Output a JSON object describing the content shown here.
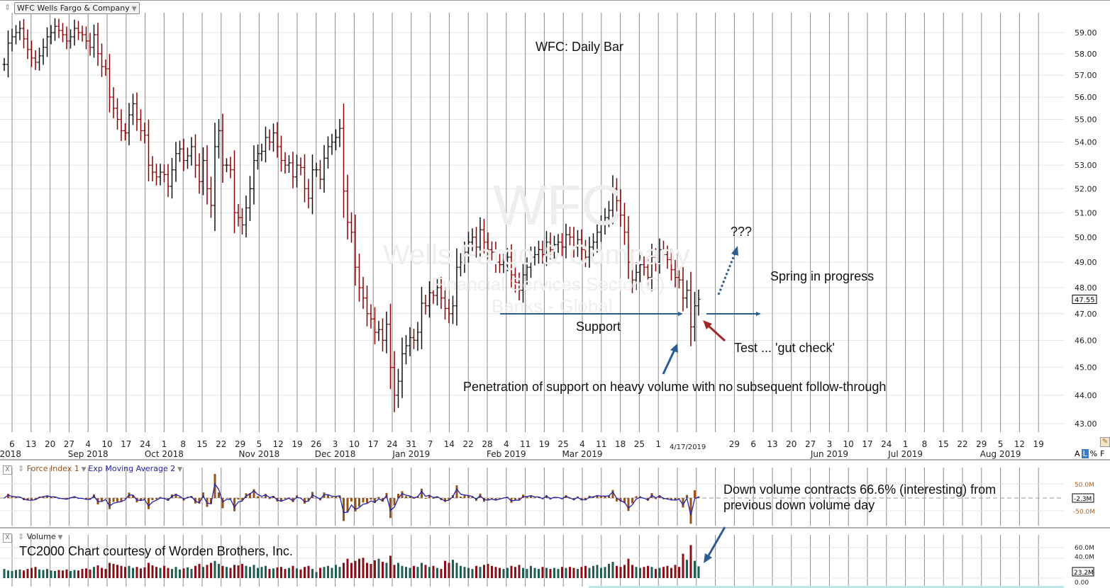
{
  "header": {
    "symbol_selector": "WFC Wells Fargo & Company"
  },
  "watermark": {
    "ticker": "WFC",
    "name": "Wells Fargo & Company",
    "sector": "Financial Services Sector(C)",
    "industry": "Banks - Global"
  },
  "annotations": {
    "title": "WFC:  Daily Bar",
    "question": "???",
    "spring": "Spring in progress",
    "support": "Support",
    "test": "Test ... 'gut check'",
    "penetration": "Penetration of support on heavy volume with no subsequent follow-through",
    "volume_note_1": "Down volume contracts 66.6% (interesting) from",
    "volume_note_2": "previous down volume day",
    "credit": "TC2000 Chart courtesy of Worden Brothers, Inc."
  },
  "scale_toggles": {
    "a": "A",
    "l": "L",
    "pct": "%",
    "f": "F",
    "active": "L"
  },
  "colors": {
    "up": "#111111",
    "down": "#8b0000",
    "vol_up": "#1f5f50",
    "vol_down": "#8b0f14",
    "force": "#9a5215",
    "ema": "#2222aa",
    "support": "#2d5d8e",
    "arrow_red": "#a3262a"
  },
  "chart_data": [
    {
      "type": "bar",
      "title": "WFC:  Daily Bar",
      "scale": "log",
      "ylim": [
        43,
        59.5
      ],
      "y_ticks": [
        "59.00",
        "58.00",
        "57.00",
        "56.00",
        "55.00",
        "54.00",
        "53.00",
        "52.00",
        "51.00",
        "50.00",
        "49.00",
        "48.00",
        "47.00",
        "46.00",
        "45.00",
        "44.00",
        "43.00"
      ],
      "last_price": "47.55",
      "current_date": "4/17/2019",
      "support_level": 47.0,
      "x_tick_labels": [
        "6",
        "13",
        "20",
        "27",
        "4",
        "10",
        "17",
        "24",
        "1",
        "8",
        "15",
        "22",
        "29",
        "5",
        "12",
        "19",
        "26",
        "3",
        "10",
        "17",
        "24",
        "31",
        "7",
        "14",
        "22",
        "28",
        "4",
        "11",
        "19",
        "25",
        "4",
        "11",
        "18",
        "25",
        "1",
        "",
        "",
        "",
        "29",
        "6",
        "13",
        "20",
        "27",
        "3",
        "10",
        "17",
        "24",
        "1",
        "8",
        "15",
        "22",
        "29",
        "5",
        "12",
        "19"
      ],
      "month_labels": [
        {
          "label": "2018",
          "tick": 0
        },
        {
          "label": "Sep 2018",
          "tick": 4
        },
        {
          "label": "Oct 2018",
          "tick": 8
        },
        {
          "label": "Nov 2018",
          "tick": 13
        },
        {
          "label": "Dec 2018",
          "tick": 17
        },
        {
          "label": "Jan 2019",
          "tick": 21
        },
        {
          "label": "Feb 2019",
          "tick": 26
        },
        {
          "label": "Mar 2019",
          "tick": 30
        },
        {
          "label": "Jun 2019",
          "tick": 43
        },
        {
          "label": "Jul 2019",
          "tick": 47
        },
        {
          "label": "Aug 2019",
          "tick": 52
        }
      ],
      "closes": [
        57.5,
        58.5,
        58.8,
        59.0,
        59.2,
        58.7,
        58.2,
        57.8,
        57.6,
        57.9,
        58.3,
        58.8,
        59.0,
        59.3,
        59.1,
        58.9,
        58.6,
        58.8,
        59.2,
        59.0,
        58.9,
        58.6,
        58.3,
        58.9,
        58.0,
        57.4,
        57.3,
        56.0,
        55.5,
        55.0,
        54.5,
        54.4,
        55.2,
        55.7,
        55.0,
        54.5,
        54.3,
        53.0,
        52.7,
        52.5,
        52.7,
        52.6,
        52.1,
        52.8,
        53.5,
        53.7,
        53.2,
        53.4,
        53.8,
        53.0,
        52.3,
        53.2,
        52.0,
        51.3,
        53.8,
        54.5,
        53.0,
        53.0,
        52.8,
        51.0,
        50.8,
        50.5,
        51.2,
        52.0,
        53.2,
        53.5,
        53.6,
        54.2,
        54.0,
        54.4,
        53.8,
        53.2,
        53.0,
        53.1,
        52.5,
        53.0,
        52.9,
        52.0,
        51.6,
        52.8,
        52.8,
        52.4,
        53.3,
        53.8,
        54.0,
        54.2,
        54.6,
        51.9,
        50.6,
        50.2,
        48.8,
        48.0,
        47.6,
        47.0,
        46.8,
        46.3,
        46.4,
        46.0,
        46.6,
        45.0,
        44.0,
        44.5,
        45.5,
        45.8,
        46.1,
        46.0,
        46.3,
        47.4,
        47.3,
        47.8,
        47.7,
        48.0,
        47.6,
        47.2,
        47.0,
        47.3,
        48.8,
        49.0,
        49.4,
        49.8,
        50.0,
        49.6,
        50.3,
        49.8,
        49.5,
        49.4,
        49.0,
        48.9,
        49.0,
        49.2,
        48.5,
        48.2,
        47.9,
        48.5,
        48.8,
        49.2,
        49.3,
        49.5,
        49.3,
        49.8,
        49.5,
        49.7,
        49.8,
        49.6,
        50.1,
        50.0,
        49.6,
        49.9,
        49.5,
        49.2,
        49.6,
        49.8,
        50.2,
        50.5,
        50.8,
        51.1,
        52.0,
        51.5,
        50.9,
        50.2,
        49.0,
        48.3,
        48.6,
        48.9,
        48.8,
        48.4,
        49.2,
        49.0,
        49.5,
        49.3,
        49.1,
        48.7,
        48.4,
        48.3,
        47.6,
        47.9,
        46.5,
        47.3,
        47.55
      ]
    },
    {
      "type": "bar",
      "title": "Force Index 1",
      "overlay": "Exp Moving Average 2",
      "y_ticks": [
        "50.0M",
        "-50.0M"
      ],
      "last_value": "-2.3M"
    },
    {
      "type": "bar",
      "title": "Volume",
      "unit": "M",
      "y_ticks": [
        "60.0M",
        "40.0M",
        "0.00"
      ],
      "last_value": "23.2M",
      "values": [
        18,
        15,
        14,
        16,
        17,
        15,
        18,
        20,
        22,
        17,
        16,
        18,
        15,
        14,
        16,
        15,
        17,
        14,
        16,
        15,
        18,
        19,
        17,
        22,
        25,
        20,
        18,
        30,
        28,
        26,
        24,
        22,
        24,
        20,
        22,
        19,
        21,
        30,
        25,
        22,
        20,
        24,
        20,
        18,
        22,
        17,
        19,
        21,
        18,
        24,
        28,
        22,
        26,
        30,
        34,
        28,
        24,
        22,
        20,
        26,
        25,
        28,
        24,
        22,
        26,
        20,
        22,
        24,
        18,
        19,
        21,
        22,
        18,
        20,
        24,
        19,
        17,
        22,
        24,
        18,
        12,
        20,
        22,
        24,
        20,
        26,
        22,
        30,
        38,
        30,
        34,
        38,
        40,
        30,
        28,
        35,
        38,
        32,
        30,
        44,
        26,
        30,
        24,
        22,
        20,
        24,
        22,
        30,
        26,
        22,
        24,
        20,
        18,
        34,
        30,
        36,
        30,
        24,
        22,
        20,
        18,
        24,
        22,
        26,
        28,
        24,
        22,
        20,
        18,
        20,
        24,
        22,
        26,
        20,
        18,
        24,
        20,
        18,
        22,
        20,
        18,
        20,
        18,
        22,
        20,
        22,
        20,
        18,
        22,
        24,
        20,
        24,
        26,
        20,
        22,
        28,
        32,
        24,
        22,
        26,
        38,
        26,
        22,
        20,
        22,
        24,
        22,
        18,
        20,
        22,
        24,
        20,
        26,
        22,
        48,
        36,
        65,
        34,
        23.2
      ]
    }
  ]
}
